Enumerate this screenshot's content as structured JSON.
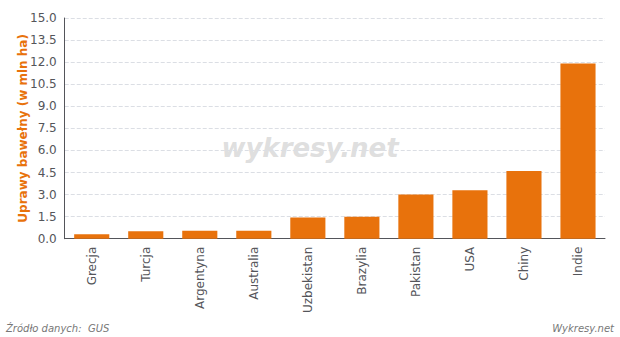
{
  "chart_data": {
    "type": "bar",
    "ylabel": "Uprawy bawełny (w mln ha)",
    "categories": [
      "Grecja",
      "Turcja",
      "Argentyna",
      "Australia",
      "Uzbekistan",
      "Brazylia",
      "Pakistan",
      "USA",
      "Chiny",
      "Indie"
    ],
    "values": [
      0.3,
      0.5,
      0.55,
      0.55,
      1.45,
      1.5,
      3.0,
      3.3,
      4.6,
      11.9
    ],
    "color": "#e8720c",
    "ylim": [
      0,
      15.0
    ],
    "yticks": [
      {
        "value": 0.0,
        "label": "0.0"
      },
      1.5,
      {
        "value": 3.0,
        "label": "3.0"
      },
      4.5,
      {
        "value": 6.0,
        "label": "6.0"
      },
      7.5,
      {
        "value": 9.0,
        "label": "9.0"
      },
      10.5,
      {
        "value": 12.0,
        "label": "12.0"
      },
      13.5,
      {
        "value": 15.0,
        "label": "15.0"
      }
    ],
    "grid": true,
    "annotations": [
      "wykresy.net",
      "Źródło danych:  GUS",
      "Wykresy.net"
    ]
  }
}
